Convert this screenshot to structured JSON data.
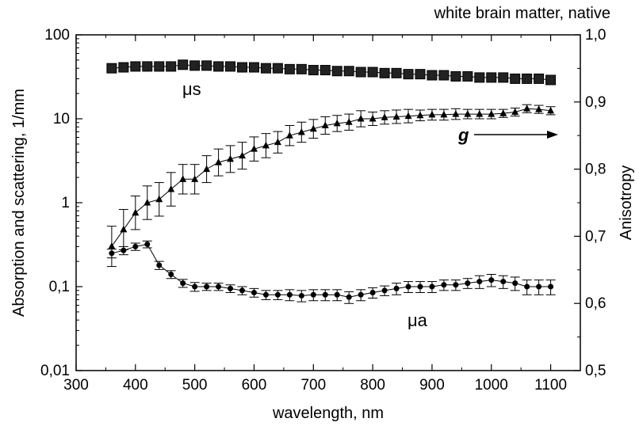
{
  "chart_data": {
    "type": "scatter",
    "title": "white brain matter, native",
    "xlabel": "wavelength, nm",
    "ylabel": "Absorption and scattering, 1/mm",
    "y2label": "Anisotropy",
    "xlim": [
      300,
      1150
    ],
    "ylim": [
      0.01,
      100
    ],
    "yscale": "log",
    "y2lim": [
      0.5,
      1.0
    ],
    "x_ticks": [
      "300",
      "400",
      "500",
      "600",
      "700",
      "800",
      "900",
      "1000",
      "1100"
    ],
    "y_ticks": [
      "0,01",
      "0,1",
      "1",
      "10",
      "100"
    ],
    "y2_ticks": [
      "0,5",
      "0,6",
      "0,7",
      "0,8",
      "0,9",
      "1,0"
    ],
    "grid": false,
    "legend": "none",
    "series": [
      {
        "name": "μs",
        "axis": "left",
        "marker": "square",
        "x": [
          360,
          380,
          400,
          420,
          440,
          460,
          480,
          500,
          520,
          540,
          560,
          580,
          600,
          620,
          640,
          660,
          680,
          700,
          720,
          740,
          760,
          780,
          800,
          820,
          840,
          860,
          880,
          900,
          920,
          940,
          960,
          980,
          1000,
          1020,
          1040,
          1060,
          1080,
          1100
        ],
        "y": [
          40,
          41,
          42,
          42,
          42,
          42,
          44,
          43,
          43,
          42,
          42,
          41,
          41,
          40,
          40,
          39,
          39,
          38,
          38,
          37,
          37,
          36,
          36,
          35,
          35,
          34,
          34,
          33,
          33,
          32,
          32,
          31,
          31,
          31,
          30,
          30,
          30,
          29
        ]
      },
      {
        "name": "μa",
        "axis": "left",
        "marker": "circle",
        "x": [
          360,
          380,
          400,
          420,
          440,
          460,
          480,
          500,
          520,
          540,
          560,
          580,
          600,
          620,
          640,
          660,
          680,
          700,
          720,
          740,
          760,
          780,
          800,
          820,
          840,
          860,
          880,
          900,
          920,
          940,
          960,
          980,
          1000,
          1020,
          1040,
          1060,
          1080,
          1100
        ],
        "y": [
          0.25,
          0.27,
          0.3,
          0.32,
          0.18,
          0.14,
          0.11,
          0.1,
          0.1,
          0.1,
          0.095,
          0.09,
          0.085,
          0.08,
          0.08,
          0.08,
          0.078,
          0.08,
          0.08,
          0.08,
          0.075,
          0.08,
          0.085,
          0.09,
          0.095,
          0.1,
          0.1,
          0.1,
          0.105,
          0.105,
          0.11,
          0.115,
          0.12,
          0.115,
          0.11,
          0.1,
          0.1,
          0.1
        ],
        "err": [
          0.03,
          0.03,
          0.03,
          0.03,
          0.02,
          0.015,
          0.012,
          0.012,
          0.01,
          0.01,
          0.01,
          0.01,
          0.01,
          0.01,
          0.01,
          0.012,
          0.012,
          0.012,
          0.012,
          0.012,
          0.012,
          0.012,
          0.012,
          0.012,
          0.015,
          0.015,
          0.015,
          0.015,
          0.015,
          0.015,
          0.015,
          0.02,
          0.02,
          0.02,
          0.02,
          0.02,
          0.02,
          0.02
        ]
      },
      {
        "name": "g",
        "axis": "right",
        "marker": "triangle",
        "x": [
          360,
          380,
          400,
          420,
          440,
          460,
          480,
          500,
          520,
          540,
          560,
          580,
          600,
          620,
          640,
          660,
          680,
          700,
          720,
          740,
          760,
          780,
          800,
          820,
          840,
          860,
          880,
          900,
          920,
          940,
          960,
          980,
          1000,
          1020,
          1040,
          1060,
          1080,
          1100
        ],
        "y": [
          0.685,
          0.71,
          0.735,
          0.75,
          0.755,
          0.77,
          0.785,
          0.785,
          0.8,
          0.81,
          0.815,
          0.82,
          0.83,
          0.835,
          0.84,
          0.85,
          0.855,
          0.86,
          0.865,
          0.868,
          0.87,
          0.875,
          0.875,
          0.877,
          0.878,
          0.879,
          0.88,
          0.881,
          0.881,
          0.882,
          0.882,
          0.882,
          0.882,
          0.883,
          0.885,
          0.89,
          0.889,
          0.887
        ],
        "err": [
          0.03,
          0.03,
          0.025,
          0.025,
          0.025,
          0.025,
          0.022,
          0.022,
          0.02,
          0.02,
          0.02,
          0.02,
          0.018,
          0.018,
          0.016,
          0.015,
          0.015,
          0.014,
          0.013,
          0.012,
          0.012,
          0.012,
          0.01,
          0.01,
          0.01,
          0.01,
          0.008,
          0.008,
          0.008,
          0.008,
          0.007,
          0.007,
          0.007,
          0.006,
          0.006,
          0.006,
          0.006,
          0.006
        ]
      }
    ],
    "annotations": {
      "mu_s": "μs",
      "mu_a": "μa",
      "g": "g"
    }
  }
}
